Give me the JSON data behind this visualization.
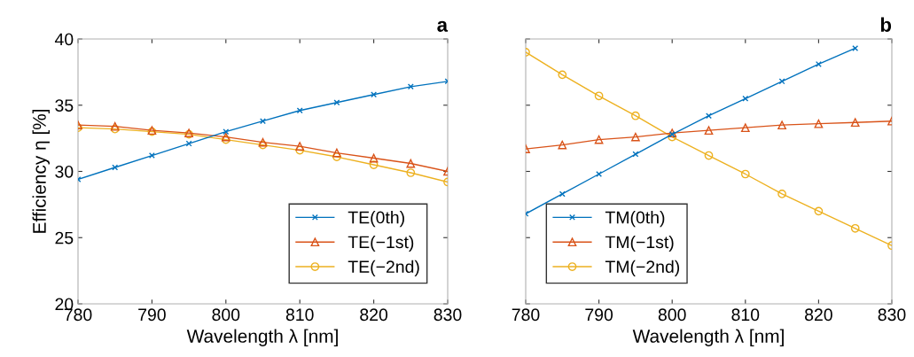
{
  "chart_data": [
    {
      "type": "line",
      "title": "a",
      "xlabel": "Wavelength λ [nm]",
      "ylabel": "Efficiency η [%]",
      "x": [
        780,
        785,
        790,
        795,
        800,
        805,
        810,
        815,
        820,
        825,
        830
      ],
      "xlim": [
        780,
        830
      ],
      "xticks": [
        780,
        790,
        800,
        810,
        820,
        830
      ],
      "ylim": [
        20,
        40
      ],
      "yticks": [
        20,
        25,
        30,
        35,
        40
      ],
      "grid": false,
      "legend": "bottom right",
      "series": [
        {
          "name": "TE(0th)",
          "color": "#0072bd",
          "marker": "cross",
          "values": [
            29.4,
            30.3,
            31.2,
            32.1,
            33.0,
            33.8,
            34.6,
            35.2,
            35.8,
            36.4,
            36.8
          ]
        },
        {
          "name": "TE(−1st)",
          "color": "#d95319",
          "marker": "triangle",
          "values": [
            33.5,
            33.4,
            33.1,
            32.9,
            32.6,
            32.2,
            31.9,
            31.4,
            31.0,
            30.6,
            30.0
          ]
        },
        {
          "name": "TE(−2nd)",
          "color": "#edb120",
          "marker": "circle",
          "values": [
            33.3,
            33.2,
            33.0,
            32.8,
            32.4,
            32.0,
            31.6,
            31.1,
            30.5,
            29.9,
            29.2
          ]
        }
      ]
    },
    {
      "type": "line",
      "title": "b",
      "xlabel": "Wavelength λ [nm]",
      "x": [
        780,
        785,
        790,
        795,
        800,
        805,
        810,
        815,
        820,
        825,
        830
      ],
      "xlim": [
        780,
        830
      ],
      "xticks": [
        780,
        790,
        800,
        810,
        820,
        830
      ],
      "ylim": [
        20,
        40
      ],
      "yticks": [
        20,
        25,
        30,
        35,
        40
      ],
      "tick_labels": "x",
      "grid": false,
      "legend": "bottom left",
      "series": [
        {
          "name": "TM(0th)",
          "color": "#0072bd",
          "marker": "cross",
          "values": [
            26.8,
            28.3,
            29.8,
            31.3,
            32.8,
            34.2,
            35.5,
            36.8,
            38.1,
            39.3,
            null
          ]
        },
        {
          "name": "TM(−1st)",
          "color": "#d95319",
          "marker": "triangle",
          "values": [
            31.7,
            32.0,
            32.4,
            32.6,
            32.9,
            33.1,
            33.3,
            33.5,
            33.6,
            33.7,
            33.8
          ]
        },
        {
          "name": "TM(−2nd)",
          "color": "#edb120",
          "marker": "circle",
          "values": [
            39.0,
            37.3,
            35.7,
            34.2,
            32.6,
            31.2,
            29.8,
            28.3,
            27.0,
            25.7,
            24.4
          ]
        }
      ]
    }
  ]
}
